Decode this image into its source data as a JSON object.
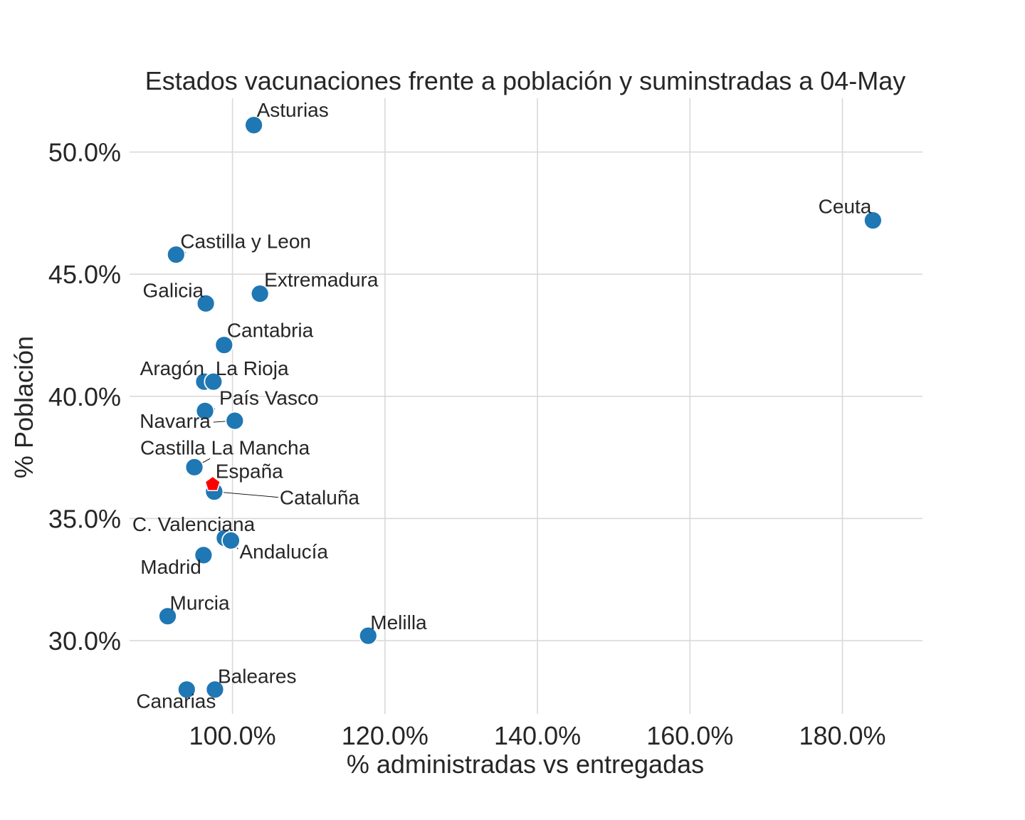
{
  "chart_data": {
    "type": "scatter",
    "title": "Estados vacunaciones frente a población y suminstradas a 04-May",
    "xlabel": "% administradas vs entregadas",
    "ylabel": "% Población",
    "xlim": [
      86.5,
      190.5
    ],
    "ylim": [
      27.0,
      52.2
    ],
    "xticks": [
      100,
      120,
      140,
      160,
      180
    ],
    "xtick_labels": [
      "100.0%",
      "120.0%",
      "140.0%",
      "160.0%",
      "180.0%"
    ],
    "yticks": [
      30,
      35,
      40,
      45,
      50
    ],
    "ytick_labels": [
      "30.0%",
      "35.0%",
      "40.0%",
      "45.0%",
      "50.0%"
    ],
    "grid": true,
    "colors": {
      "region": "#1f77b4",
      "spain": "#ff0000"
    },
    "points": [
      {
        "label": "Asturias",
        "x": 102.8,
        "y": 51.1
      },
      {
        "label": "Ceuta",
        "x": 184.0,
        "y": 47.2
      },
      {
        "label": "Castilla y Leon",
        "x": 92.6,
        "y": 45.8
      },
      {
        "label": "Extremadura",
        "x": 103.6,
        "y": 44.2
      },
      {
        "label": "Galicia",
        "x": 96.5,
        "y": 43.8
      },
      {
        "label": "Cantabria",
        "x": 98.9,
        "y": 42.1
      },
      {
        "label": "Aragón",
        "x": 96.3,
        "y": 40.6
      },
      {
        "label": "La Rioja",
        "x": 97.5,
        "y": 40.6
      },
      {
        "label": "País Vasco",
        "x": 96.4,
        "y": 39.4
      },
      {
        "label": "Navarra",
        "x": 100.3,
        "y": 39.0
      },
      {
        "label": "Castilla La Mancha",
        "x": 95.0,
        "y": 37.1
      },
      {
        "label": "Cataluña",
        "x": 97.6,
        "y": 36.1
      },
      {
        "label": "C. Valenciana",
        "x": 99.0,
        "y": 34.2
      },
      {
        "label": "Andalucía",
        "x": 99.8,
        "y": 34.1
      },
      {
        "label": "Madrid",
        "x": 96.2,
        "y": 33.5
      },
      {
        "label": "Murcia",
        "x": 91.5,
        "y": 31.0
      },
      {
        "label": "Melilla",
        "x": 117.8,
        "y": 30.2
      },
      {
        "label": "Baleares",
        "x": 97.7,
        "y": 28.0
      },
      {
        "label": "Canarias",
        "x": 94.0,
        "y": 28.0
      }
    ],
    "highlight": {
      "label": "España",
      "x": 97.4,
      "y": 36.4,
      "marker": "pentagon"
    }
  }
}
